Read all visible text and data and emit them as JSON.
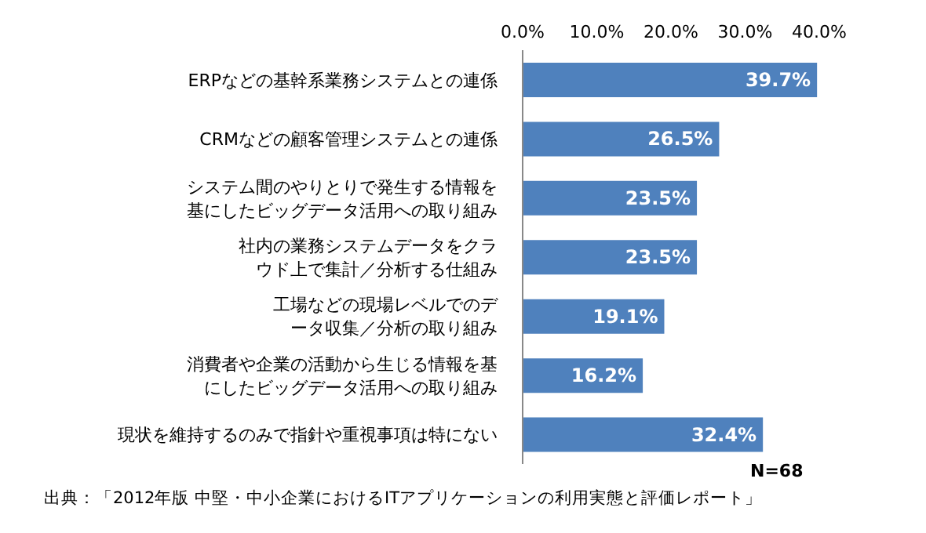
{
  "chart_data": {
    "type": "bar",
    "orientation": "horizontal",
    "categories": [
      "ERPなどの基幹系業務システムとの連係",
      "CRMなどの顧客管理システムとの連係",
      "システム間のやりとりで発生する情報を基にしたビッグデータ活用への取り組み",
      "社内の業務システムデータをクラウド上で集計／分析する仕組み",
      "工場などの現場レベルでのデータ収集／分析の取り組み",
      "消費者や企業の活動から生じる情報を基にしたビッグデータ活用への取り組み",
      "現状を維持するのみで指針や重視事項は特にない"
    ],
    "values": [
      39.7,
      26.5,
      23.5,
      23.5,
      19.1,
      16.2,
      32.4
    ],
    "value_labels": [
      "39.7%",
      "26.5%",
      "23.5%",
      "23.5%",
      "19.1%",
      "16.2%",
      "32.4%"
    ],
    "color": "#4f81bd",
    "xlim": [
      0,
      40
    ],
    "xticks": [
      {
        "value": 0,
        "label": "0.0%"
      },
      {
        "value": 10,
        "label": "10.0%"
      },
      {
        "value": 20,
        "label": "20.0%"
      },
      {
        "value": 30,
        "label": "30.0%"
      },
      {
        "value": 40,
        "label": "40.0%"
      }
    ],
    "grid": false,
    "legend": false,
    "annotations": [
      "N=68",
      "出典：「2012年版 中堅・中小企業におけるITアプリケーションの利用実態と評価レポート」"
    ]
  }
}
